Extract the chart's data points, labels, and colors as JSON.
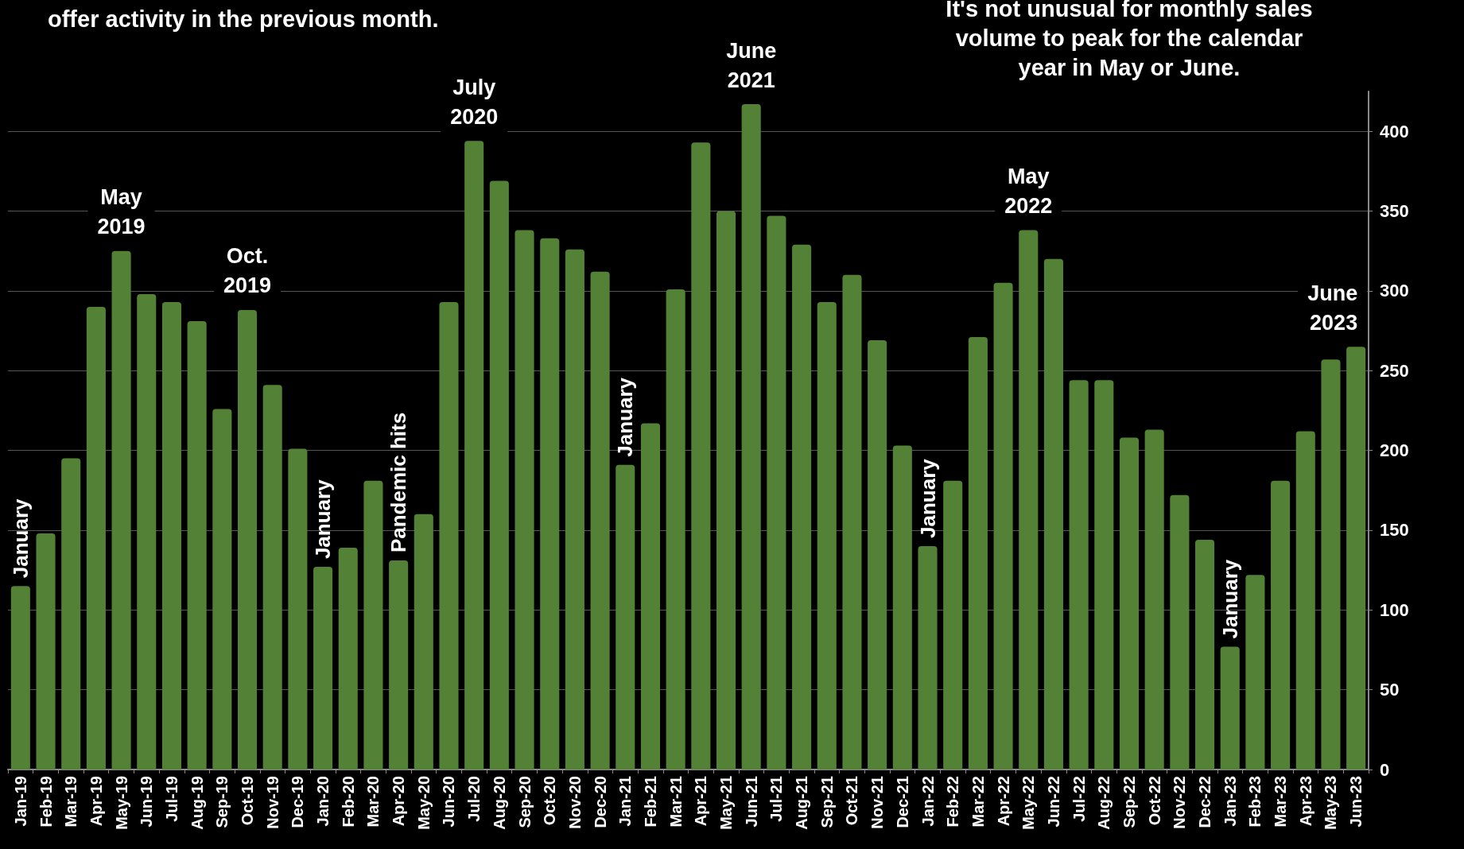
{
  "chart_data": {
    "type": "bar",
    "categories": [
      "Jan-19",
      "Feb-19",
      "Mar-19",
      "Apr-19",
      "May-19",
      "Jun-19",
      "Jul-19",
      "Aug-19",
      "Sep-19",
      "Oct-19",
      "Nov-19",
      "Dec-19",
      "Jan-20",
      "Feb-20",
      "Mar-20",
      "Apr-20",
      "May-20",
      "Jun-20",
      "Jul-20",
      "Aug-20",
      "Sep-20",
      "Oct-20",
      "Nov-20",
      "Dec-20",
      "Jan-21",
      "Feb-21",
      "Mar-21",
      "Apr-21",
      "May-21",
      "Jun-21",
      "Jul-21",
      "Aug-21",
      "Sep-21",
      "Oct-21",
      "Nov-21",
      "Dec-21",
      "Jan-22",
      "Feb-22",
      "Mar-22",
      "Apr-22",
      "May-22",
      "Jun-22",
      "Jul-22",
      "Aug-22",
      "Sep-22",
      "Oct-22",
      "Nov-22",
      "Dec-22",
      "Jan-23",
      "Feb-23",
      "Mar-23",
      "Apr-23",
      "May-23",
      "Jun-23"
    ],
    "values": [
      115,
      148,
      195,
      290,
      325,
      298,
      293,
      281,
      226,
      288,
      241,
      201,
      127,
      139,
      181,
      131,
      160,
      293,
      394,
      369,
      338,
      333,
      326,
      312,
      191,
      217,
      301,
      393,
      350,
      417,
      347,
      329,
      293,
      310,
      269,
      203,
      140,
      181,
      271,
      305,
      338,
      320,
      244,
      244,
      208,
      213,
      172,
      144,
      77,
      122,
      181,
      212,
      257,
      265
    ],
    "color": "#538135",
    "ylim": [
      0,
      425
    ],
    "yticks": [
      0,
      50,
      100,
      150,
      200,
      250,
      300,
      350,
      400
    ],
    "grid": "y",
    "annotations": [
      "offer activity in the previous month.",
      "It's not unusual for monthly sales\nvolume to peak for the calendar\nyear in May or June.",
      {
        "text": "January",
        "x": "Jan-19",
        "y": 115
      },
      {
        "text": "May\n2019",
        "x": "May-19",
        "y": 325
      },
      {
        "text": "Oct.\n2019",
        "x": "Oct-19",
        "y": 288
      },
      {
        "text": "January",
        "x": "Jan-20",
        "y": 127
      },
      {
        "text": "Pandemic hits",
        "x": "Apr-20",
        "y": 131
      },
      {
        "text": "July\n2020",
        "x": "Jul-20",
        "y": 394
      },
      {
        "text": "January",
        "x": "Jan-21",
        "y": 191
      },
      {
        "text": "June\n2021",
        "x": "Jun-21",
        "y": 417
      },
      {
        "text": "January",
        "x": "Jan-22",
        "y": 140
      },
      {
        "text": "May\n2022",
        "x": "May-22",
        "y": 338
      },
      {
        "text": "January",
        "x": "Jan-23",
        "y": 77
      },
      {
        "text": "June\n2023",
        "x": "Jun-23",
        "y": 265
      }
    ]
  }
}
